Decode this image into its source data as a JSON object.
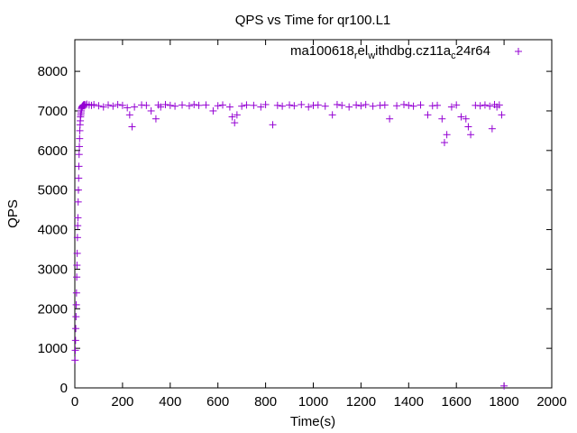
{
  "chart_data": {
    "type": "scatter",
    "title": "QPS vs Time for qr100.L1",
    "xlabel": "Time(s)",
    "ylabel": "QPS",
    "xlim": [
      0,
      2000
    ],
    "ylim": [
      0,
      8800
    ],
    "xticks": [
      0,
      200,
      400,
      600,
      800,
      1000,
      1200,
      1400,
      1600,
      1800,
      2000
    ],
    "yticks": [
      0,
      1000,
      2000,
      3000,
      4000,
      5000,
      6000,
      7000,
      8000
    ],
    "grid": false,
    "legend_position": "top-right",
    "series": [
      {
        "name": "ma100618",
        "name_parts": [
          "ma100618",
          "r",
          "el",
          "w",
          "ithdbg.cz11a",
          "c",
          "24r64"
        ],
        "color": "#9400d3",
        "marker": "plus",
        "x": [
          1,
          2,
          3,
          4,
          5,
          6,
          7,
          8,
          9,
          10,
          11,
          12,
          13,
          14,
          15,
          16,
          17,
          18,
          19,
          20,
          21,
          22,
          23,
          24,
          25,
          26,
          27,
          28,
          29,
          30,
          32,
          34,
          36,
          38,
          40,
          45,
          50,
          60,
          70,
          80,
          100,
          120,
          140,
          160,
          180,
          200,
          220,
          230,
          240,
          250,
          280,
          300,
          320,
          340,
          350,
          360,
          380,
          400,
          420,
          450,
          480,
          500,
          520,
          550,
          580,
          600,
          620,
          650,
          660,
          670,
          680,
          700,
          720,
          750,
          780,
          800,
          830,
          850,
          870,
          900,
          920,
          950,
          980,
          1000,
          1020,
          1050,
          1080,
          1100,
          1120,
          1150,
          1180,
          1200,
          1220,
          1250,
          1280,
          1300,
          1320,
          1350,
          1380,
          1400,
          1420,
          1450,
          1480,
          1500,
          1520,
          1540,
          1550,
          1560,
          1580,
          1600,
          1620,
          1640,
          1650,
          1660,
          1680,
          1700,
          1720,
          1740,
          1750,
          1760,
          1770,
          1780,
          1790,
          1800
        ],
        "y": [
          700,
          950,
          1200,
          1500,
          1800,
          2100,
          2400,
          2800,
          3100,
          3400,
          3800,
          4100,
          4300,
          4700,
          5000,
          5300,
          5600,
          5900,
          6100,
          6300,
          6500,
          6650,
          6750,
          6850,
          6900,
          6950,
          7000,
          7050,
          7080,
          7100,
          7120,
          7130,
          7150,
          7140,
          7160,
          7150,
          7170,
          7150,
          7140,
          7160,
          7130,
          7100,
          7150,
          7120,
          7160,
          7140,
          7080,
          6900,
          6600,
          7100,
          7150,
          7140,
          7000,
          6800,
          7150,
          7100,
          7160,
          7140,
          7120,
          7150,
          7130,
          7160,
          7140,
          7150,
          7000,
          7130,
          7150,
          7100,
          6850,
          6700,
          6900,
          7120,
          7150,
          7140,
          7100,
          7160,
          6650,
          7140,
          7120,
          7150,
          7130,
          7160,
          7100,
          7140,
          7150,
          7120,
          6900,
          7160,
          7140,
          7100,
          7150,
          7130,
          7160,
          7120,
          7140,
          7150,
          6800,
          7130,
          7160,
          7140,
          7120,
          7150,
          6900,
          7130,
          7140,
          6800,
          6200,
          6400,
          7100,
          7150,
          6850,
          6800,
          6600,
          6400,
          7140,
          7130,
          7150,
          7120,
          6550,
          7160,
          7100,
          7150,
          6900,
          50
        ]
      }
    ]
  }
}
